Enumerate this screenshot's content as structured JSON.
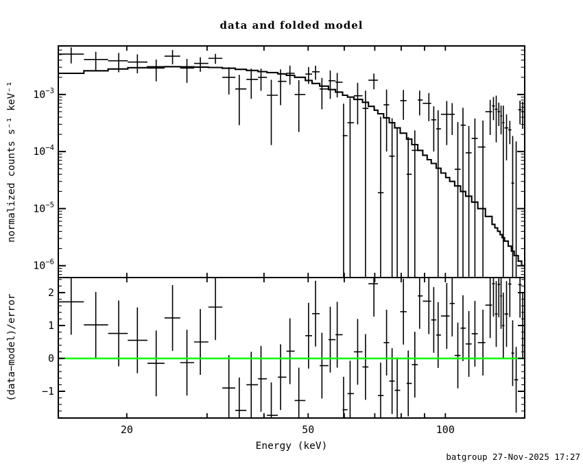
{
  "title": "data and folded model",
  "footer": {
    "credit": "batgroup 27-Nov-2025 17:27"
  },
  "colors": {
    "data": "#000000",
    "model": "#000000",
    "zero_line": "#00ff00",
    "background": "#ffffff",
    "frame": "#000000"
  },
  "chart_data": [
    {
      "type": "scatter",
      "panel": "main",
      "title": "data and folded model",
      "xlabel": "Energy (keV)",
      "ylabel": "normalized counts s⁻¹ keV⁻¹",
      "xscale": "log",
      "yscale": "log",
      "xlim": [
        14.15,
        149.3
      ],
      "ylim": [
        6.2e-07,
        0.0071
      ],
      "grid": false,
      "xticks_major": [
        20,
        30,
        40,
        50,
        60,
        70,
        80,
        90,
        100
      ],
      "xtick_labels": [
        [
          20,
          "20"
        ],
        [
          50,
          "50"
        ],
        [
          100,
          "100"
        ]
      ],
      "ytick_labels": [
        {
          "value": 0.001,
          "base": "10",
          "exp": "−3"
        },
        {
          "value": 0.0001,
          "base": "10",
          "exp": "−4"
        },
        {
          "value": 1e-05,
          "base": "10",
          "exp": "−5"
        },
        {
          "value": 1e-06,
          "base": "10",
          "exp": "−6"
        }
      ],
      "series": [
        {
          "name": "data",
          "style": "cross-errorbars",
          "columns": [
            "energy_keV",
            "e_lo",
            "e_hi",
            "rate",
            "sigma",
            "residual_sigma"
          ],
          "points": [
            [
              15.1,
              14.15,
              16.1,
              0.0051,
              0.0016,
              1.72
            ],
            [
              17.1,
              16.1,
              18.2,
              0.0041,
              0.0015,
              1.02
            ],
            [
              19.2,
              18.2,
              20.1,
              0.0039,
              0.00145,
              0.76
            ],
            [
              21.1,
              20.1,
              22.2,
              0.0037,
              0.00135,
              0.55
            ],
            [
              23.2,
              22.2,
              24.2,
              0.0029,
              0.0012,
              -0.15
            ],
            [
              25.2,
              24.2,
              26.2,
              0.0047,
              0.00133,
              1.23
            ],
            [
              27.1,
              26.2,
              28.1,
              0.0029,
              0.0013,
              -0.13
            ],
            [
              29.0,
              28.1,
              30.2,
              0.0035,
              0.001,
              0.5
            ],
            [
              31.3,
              30.2,
              32.4,
              0.0043,
              0.00085,
              1.56
            ],
            [
              33.5,
              32.4,
              34.6,
              0.002,
              0.001,
              -0.9
            ],
            [
              35.3,
              34.6,
              36.6,
              0.00125,
              0.00096,
              -1.58
            ],
            [
              37.5,
              36.6,
              38.8,
              0.00184,
              0.001,
              -0.8
            ],
            [
              39.4,
              38.8,
              40.6,
              0.002,
              0.00084,
              -0.62
            ],
            [
              41.5,
              40.6,
              42.9,
              0.00097,
              0.00084,
              -1.73
            ],
            [
              43.5,
              42.9,
              44.8,
              0.0017,
              0.00105,
              -0.57
            ],
            [
              45.6,
              44.8,
              46.7,
              0.00235,
              0.00086,
              0.22
            ],
            [
              47.7,
              46.7,
              49.3,
              0.001,
              0.00078,
              -1.28
            ],
            [
              50.1,
              49.3,
              51.0,
              0.00228,
              0.00075,
              0.69
            ],
            [
              51.9,
              51.0,
              53.0,
              0.0025,
              0.00069,
              1.36
            ],
            [
              53.6,
              53.0,
              55.4,
              0.00125,
              0.0007,
              -0.22
            ],
            [
              55.9,
              55.4,
              57.4,
              0.00174,
              0.0009,
              0.57
            ],
            [
              57.9,
              57.4,
              59.5,
              0.00164,
              0.00075,
              0.72
            ],
            [
              59.8,
              59.5,
              61.0,
              0.00019,
              0.0005,
              -1.56
            ],
            [
              61.8,
              61.0,
              63.0,
              0.00032,
              0.00054,
              -1.07
            ],
            [
              64.2,
              63.0,
              65.8,
              0.00095,
              0.00065,
              0.2
            ],
            [
              66.8,
              65.8,
              67.8,
              0.00057,
              0.0006,
              -0.26
            ],
            [
              69.7,
              67.8,
              71.1,
              0.00178,
              0.00055,
              2.27
            ],
            [
              72.1,
              71.1,
              73.2,
              1.9e-05,
              0.00039,
              -1.13
            ],
            [
              74.3,
              73.2,
              75.3,
              0.00066,
              0.00056,
              0.48
            ],
            [
              76.4,
              75.3,
              77.4,
              8.3e-05,
              0.0003,
              -0.69
            ],
            [
              78.4,
              77.4,
              79.6,
              4e-07,
              0.00026,
              -0.97
            ],
            [
              80.9,
              79.6,
              82.2,
              0.00078,
              0.00042,
              1.42
            ],
            [
              82.9,
              82.2,
              84.4,
              4e-05,
              0.00014,
              -0.76
            ],
            [
              85.7,
              84.4,
              87.0,
              0.000105,
              0.00013,
              -0.19
            ],
            [
              87.8,
              87.0,
              89.2,
              0.0008,
              0.00037,
              1.9
            ],
            [
              92.0,
              89.2,
              93.1,
              0.0007,
              0.00036,
              1.74
            ],
            [
              94.3,
              93.1,
              95.5,
              0.00036,
              0.00026,
              1.17
            ],
            [
              96.4,
              95.5,
              97.8,
              0.00025,
              0.00028,
              0.71
            ],
            [
              100.7,
              97.8,
              102.2,
              0.00045,
              0.00032,
              1.29
            ],
            [
              103.5,
              102.2,
              104.8,
              0.00045,
              0.000255,
              1.67
            ],
            [
              106.5,
              104.8,
              108.0,
              4.9e-05,
              0.00028,
              0.09
            ],
            [
              109.3,
              108.0,
              110.8,
              0.00029,
              0.000295,
              0.92
            ],
            [
              112.6,
              110.8,
              114.2,
              9.5e-05,
              0.000185,
              0.44
            ],
            [
              116.1,
              114.2,
              117.8,
              0.00017,
              0.00021,
              0.75
            ],
            [
              120.9,
              117.8,
              122.4,
              0.00012,
              0.00023,
              0.48
            ],
            [
              125.4,
              122.4,
              126.6,
              0.0005,
              0.000305,
              1.62
            ],
            [
              127.5,
              126.6,
              128.4,
              0.00063,
              0.000275,
              2.27
            ],
            [
              129.3,
              128.4,
              130.2,
              0.00055,
              0.000405,
              1.35
            ],
            [
              131.0,
              130.2,
              131.9,
              0.0005,
              0.00022,
              2.25
            ],
            [
              132.5,
              131.9,
              133.2,
              0.00042,
              0.00022,
              1.9
            ],
            [
              134.0,
              133.2,
              134.8,
              0.00032,
              0.00032,
              1.0
            ],
            [
              136.2,
              134.8,
              137.4,
              0.00026,
              0.00019,
              1.35
            ],
            [
              138.5,
              137.4,
              139.6,
              0.00024,
              0.000105,
              2.26
            ],
            [
              140.5,
              139.6,
              141.6,
              2.8e-05,
              0.00016,
              0.16
            ],
            [
              143.0,
              141.6,
              144.5,
              4e-07,
              0.00015,
              -0.65
            ],
            [
              145.8,
              144.5,
              147.0,
              0.00054,
              0.00024,
              2.24
            ],
            [
              147.8,
              147.0,
              149.3,
              0.0005,
              0.00025,
              1.0
            ]
          ]
        },
        {
          "name": "folded model",
          "style": "steps",
          "columns": [
            "energy_keV",
            "model_rate"
          ],
          "steps": [
            [
              14.15,
              0.00235
            ],
            [
              16.1,
              0.0026
            ],
            [
              18.2,
              0.0028
            ],
            [
              20.1,
              0.00295
            ],
            [
              22.2,
              0.00305
            ],
            [
              24.2,
              0.00307
            ],
            [
              26.2,
              0.00305
            ],
            [
              28.1,
              0.00302
            ],
            [
              30.2,
              0.00297
            ],
            [
              32.4,
              0.00288
            ],
            [
              34.6,
              0.00276
            ],
            [
              36.6,
              0.00264
            ],
            [
              38.8,
              0.00252
            ],
            [
              40.6,
              0.00242
            ],
            [
              42.9,
              0.0023
            ],
            [
              44.8,
              0.00216
            ],
            [
              46.7,
              0.002
            ],
            [
              49.3,
              0.00176
            ],
            [
              51.0,
              0.00156
            ],
            [
              53.0,
              0.0014
            ],
            [
              55.4,
              0.00122
            ],
            [
              57.4,
              0.0011
            ],
            [
              59.5,
              0.00097
            ],
            [
              61.0,
              0.0009
            ],
            [
              63.0,
              0.00082
            ],
            [
              65.8,
              0.00073
            ],
            [
              67.8,
              0.00062
            ],
            [
              69.8,
              0.00053
            ],
            [
              71.1,
              0.00046
            ],
            [
              73.2,
              0.00039
            ],
            [
              75.3,
              0.00032
            ],
            [
              77.4,
              0.00026
            ],
            [
              79.6,
              0.00021
            ],
            [
              82.2,
              0.000165
            ],
            [
              84.4,
              0.000132
            ],
            [
              87.0,
              0.000105
            ],
            [
              89.2,
              8.6e-05
            ],
            [
              91.2,
              7.2e-05
            ],
            [
              93.1,
              6.2e-05
            ],
            [
              95.5,
              5.1e-05
            ],
            [
              97.8,
              4.2e-05
            ],
            [
              100.2,
              3.5e-05
            ],
            [
              102.2,
              3e-05
            ],
            [
              104.8,
              2.5e-05
            ],
            [
              108.0,
              2e-05
            ],
            [
              110.8,
              1.65e-05
            ],
            [
              114.2,
              1.3e-05
            ],
            [
              117.8,
              1e-05
            ],
            [
              122.4,
              7.3e-06
            ],
            [
              126.6,
              5.3e-06
            ],
            [
              128.4,
              4.6e-06
            ],
            [
              130.2,
              4e-06
            ],
            [
              131.9,
              3.5e-06
            ],
            [
              133.2,
              3.1e-06
            ],
            [
              134.8,
              2.7e-06
            ],
            [
              137.4,
              2.2e-06
            ],
            [
              139.6,
              1.8e-06
            ],
            [
              141.6,
              1.5e-06
            ],
            [
              144.5,
              1.2e-06
            ],
            [
              147.0,
              1e-06
            ],
            [
              149.3,
              8.5e-07
            ]
          ]
        }
      ]
    },
    {
      "type": "scatter",
      "panel": "residuals",
      "ylabel": "(data−model)/error",
      "xscale": "log",
      "yscale": "linear",
      "xlim": [
        14.15,
        149.3
      ],
      "ylim": [
        -1.8125,
        2.4583
      ],
      "yticks_major": [
        -1,
        0,
        1,
        2
      ],
      "ytick_minor_step": 0.2,
      "ytick_labels": [
        {
          "value": 2,
          "label": "2"
        },
        {
          "value": 1,
          "label": "1"
        },
        {
          "value": 0,
          "label": "0"
        },
        {
          "value": -1,
          "label": "−1"
        }
      ],
      "zero_line": {
        "y": 0,
        "color": "#00ff00"
      },
      "error_bar_half_height": 1,
      "points_note": "residual value per bin is column residual_sigma of chart_data[0].series[0].points"
    }
  ]
}
